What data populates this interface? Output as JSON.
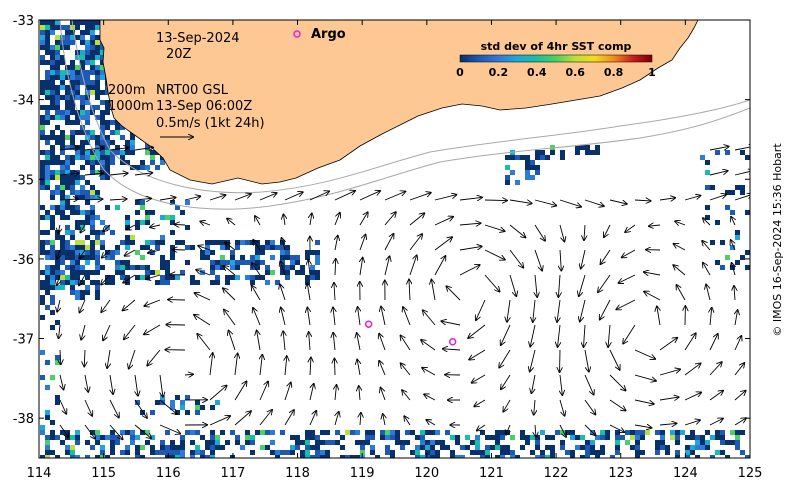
{
  "map": {
    "x_axis": {
      "min": 114,
      "max": 125,
      "ticks": [
        "114",
        "115",
        "116",
        "117",
        "118",
        "119",
        "120",
        "121",
        "122",
        "123",
        "124",
        "125"
      ]
    },
    "y_axis": {
      "min": -38.5,
      "max": -33,
      "ticks": [
        "-33",
        "-34",
        "-35",
        "-36",
        "-37",
        "-38"
      ]
    },
    "land_color": "#fdc893",
    "sst_colors": [
      "#08306b",
      "#1e5ab4",
      "#2d7bd8",
      "#1da8d8",
      "#16c0a4",
      "#4bd064",
      "#b9e03c",
      "#f0dc1e",
      "#f08c1e",
      "#c81e1e",
      "#7a0000"
    ]
  },
  "annotations": {
    "date": "13-Sep-2024",
    "time": "20Z",
    "depth1": "200m",
    "depth2": "1000m",
    "product": "NRT00 GSL",
    "product_time": "13-Sep 06:00Z",
    "scale": "0.5m/s (1kt 24h)"
  },
  "legend": {
    "argo_label": "Argo",
    "argo_color": "#e020e0",
    "colorbar_title": "std dev of 4hr SST comp",
    "colorbar_ticks": [
      "0",
      "0.2",
      "0.4",
      "0.6",
      "0.8",
      "1"
    ]
  },
  "argo_floats": [
    {
      "lon": 119.1,
      "lat": -36.82
    },
    {
      "lon": 120.4,
      "lat": -37.04
    }
  ],
  "credit": "© IMOS 16-Sep-2024 15:36 Hobart"
}
